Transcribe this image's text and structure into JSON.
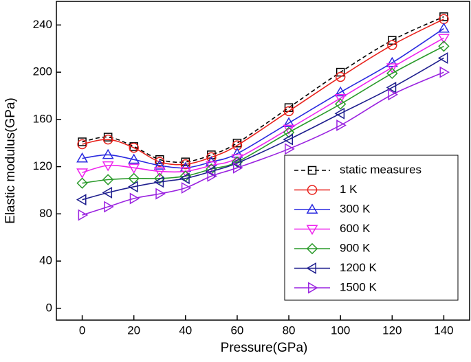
{
  "chart_data": {
    "type": "line",
    "x_label": "Pressure(GPa)",
    "y_label": "Elastic modulus(GPa)",
    "x": [
      0,
      10,
      20,
      30,
      40,
      50,
      60,
      80,
      100,
      120,
      140
    ],
    "xlim": [
      -10,
      150
    ],
    "xticks": [
      0,
      20,
      40,
      60,
      80,
      100,
      120,
      140
    ],
    "ylim": [
      -10,
      260
    ],
    "yticks": [
      0,
      40,
      80,
      120,
      160,
      200,
      240
    ],
    "legend": "lower right",
    "series": [
      {
        "name": "static measures",
        "color": "#000000",
        "marker": "square",
        "dashed": true,
        "values": [
          141,
          145,
          137,
          126,
          124,
          130,
          140,
          170,
          200,
          227,
          247
        ]
      },
      {
        "name": "1 K",
        "color": "#e8221c",
        "marker": "circle",
        "dashed": false,
        "values": [
          139,
          143,
          136,
          124,
          122,
          128,
          138,
          167,
          196,
          223,
          245
        ]
      },
      {
        "name": "300 K",
        "color": "#2a2ae0",
        "marker": "triangle-up",
        "dashed": false,
        "values": [
          127,
          130,
          126,
          121,
          119,
          124,
          131,
          157,
          183,
          208,
          237
        ]
      },
      {
        "name": "600 K",
        "color": "#ee22ee",
        "marker": "triangle-down",
        "dashed": false,
        "values": [
          115,
          121,
          119,
          116,
          116,
          121,
          127,
          152,
          178,
          204,
          229
        ]
      },
      {
        "name": "900 K",
        "color": "#2a9a2a",
        "marker": "diamond",
        "dashed": false,
        "values": [
          106,
          109,
          110,
          110,
          112,
          118,
          124,
          149,
          173,
          199,
          222
        ]
      },
      {
        "name": "1200 K",
        "color": "#1e1e8e",
        "marker": "triangle-left",
        "dashed": false,
        "values": [
          92,
          98,
          103,
          107,
          110,
          116,
          123,
          143,
          165,
          187,
          212
        ]
      },
      {
        "name": "1500 K",
        "color": "#9a22e0",
        "marker": "triangle-right",
        "dashed": false,
        "values": [
          79,
          86,
          93,
          97,
          102,
          112,
          119,
          135,
          155,
          181,
          200
        ]
      }
    ]
  }
}
